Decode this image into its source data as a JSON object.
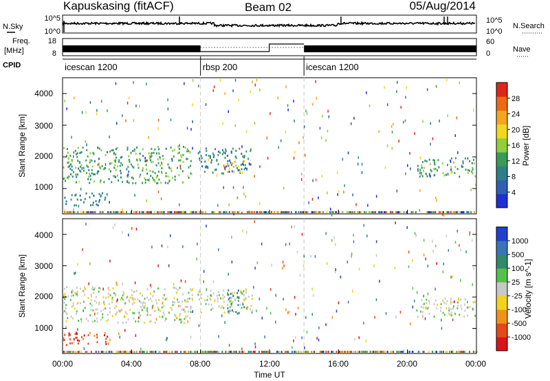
{
  "header": {
    "station": "Kapuskasing (fitACF)",
    "beam": "Beam 02",
    "date": "05/Aug/2014"
  },
  "noise_panel": {
    "left_label": "N.Sky",
    "right_label": "N.Search",
    "left_ticks": [
      "10^5",
      "10^0"
    ],
    "right_ticks": [
      "10^5",
      "10^0"
    ]
  },
  "freq_panel": {
    "left_label_line1": "Freq.",
    "left_label_line2": "[MHz]",
    "right_label": "Nave",
    "left_ticks": [
      "18",
      "8"
    ],
    "right_ticks": [
      "60",
      "0"
    ]
  },
  "cpid_panel": {
    "label": "CPID",
    "modes": [
      {
        "name": "icescan 1200",
        "start": 0,
        "end": 8
      },
      {
        "name": "rbsp 200",
        "start": 8,
        "end": 14
      },
      {
        "name": "icescan 1200",
        "start": 14,
        "end": 24
      }
    ]
  },
  "x_axis": {
    "label": "Time UT",
    "ticks": [
      "00:00",
      "04:00",
      "08:00",
      "12:00",
      "16:00",
      "20:00",
      "00:00"
    ]
  },
  "power_panel": {
    "ylabel": "Slant Range [km]",
    "yticks": [
      "4000",
      "3000",
      "2000",
      "1000"
    ],
    "colorbar_label": "Power [dB]",
    "colorbar_ticks": [
      "28",
      "24",
      "20",
      "16",
      "12",
      "8",
      "4"
    ],
    "colors": [
      "#1f2fd6",
      "#2f5fb0",
      "#2e7f8a",
      "#3a9a56",
      "#8fcf3a",
      "#f2d81c",
      "#f4a51c",
      "#ee6a12",
      "#e0251a"
    ]
  },
  "velocity_panel": {
    "ylabel": "Slant Range [km]",
    "yticks": [
      "4000",
      "3000",
      "2000",
      "1000"
    ],
    "colorbar_label": "Velocity [m s^-1]",
    "colorbar_ticks": [
      "1000",
      "500",
      "100",
      "25",
      "-25",
      "-100",
      "-500",
      "-1000"
    ],
    "colors": [
      "#2040d0",
      "#3a74b8",
      "#2f8a6a",
      "#55c04a",
      "#c8c8c8",
      "#f2d21c",
      "#f0921a",
      "#e4491a",
      "#d8141a"
    ]
  },
  "chart_data": {
    "type": "heatmap",
    "x_range": [
      0,
      24
    ],
    "y_range": [
      200,
      4500
    ],
    "mode_boundaries": [
      8,
      14
    ],
    "power_regions": [
      {
        "t0": 0.0,
        "t1": 7.5,
        "r0": 1200,
        "r1": 2350,
        "value_db": 12
      },
      {
        "t0": 7.8,
        "t1": 11.0,
        "r0": 1500,
        "r1": 2300,
        "value_db": 8
      },
      {
        "t0": 9.5,
        "t1": 10.5,
        "r0": 1500,
        "r1": 1900,
        "value_db": 20
      },
      {
        "t0": 0.0,
        "t1": 2.6,
        "r0": 500,
        "r1": 900,
        "value_db": 8
      },
      {
        "t0": 20.5,
        "t1": 24.0,
        "r0": 1400,
        "r1": 2000,
        "value_db": 12
      }
    ],
    "velocity_regions": [
      {
        "t0": 0.0,
        "t1": 7.5,
        "r0": 1200,
        "r1": 2350,
        "value_ms": 0
      },
      {
        "t0": 7.8,
        "t1": 11.0,
        "r0": 1500,
        "r1": 2300,
        "value_ms": 0
      },
      {
        "t0": 9.5,
        "t1": 10.5,
        "r0": 1500,
        "r1": 2300,
        "value_ms": 100
      },
      {
        "t0": 0.0,
        "t1": 2.6,
        "r0": 500,
        "r1": 900,
        "value_ms": -500
      },
      {
        "t0": 20.5,
        "t1": 24.0,
        "r0": 1400,
        "r1": 2000,
        "value_ms": 0
      }
    ]
  }
}
